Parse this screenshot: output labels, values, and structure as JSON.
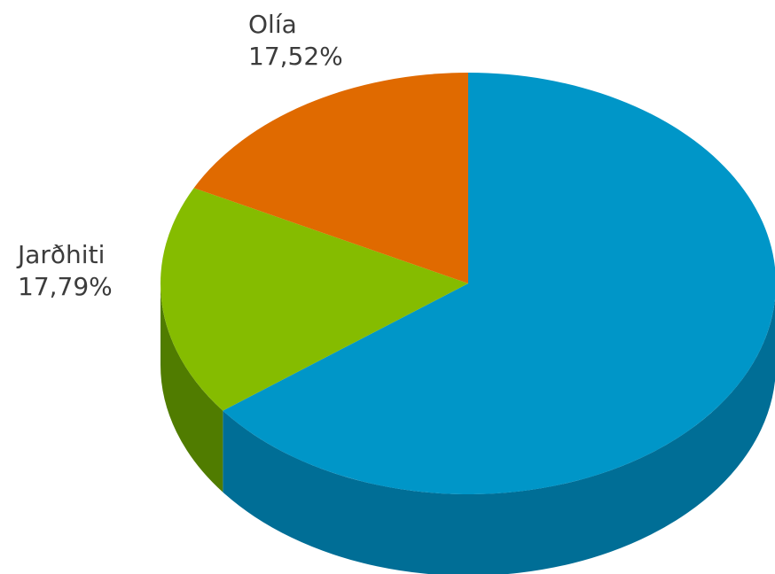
{
  "chart_data": {
    "type": "pie",
    "style": "3d",
    "slices": [
      {
        "label": "",
        "value": 64.69,
        "value_label": "",
        "color": "#0096C8",
        "side_color": "#006E96"
      },
      {
        "label": "Jarðhiti",
        "value": 17.79,
        "value_label": "17,79%",
        "color": "#85BC00",
        "side_color": "#507C00"
      },
      {
        "label": "Olía",
        "value": 17.52,
        "value_label": "17,52%",
        "color": "#E06A00",
        "side_color": "#A84F00"
      }
    ]
  }
}
